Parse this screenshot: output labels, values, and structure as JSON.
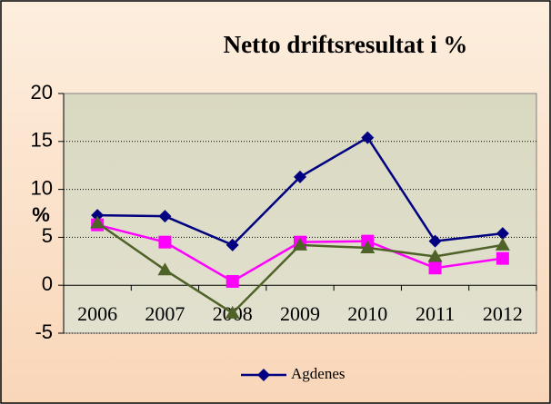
{
  "chart_data": {
    "type": "line",
    "title": "Netto driftsresultat i %",
    "y_label": "%",
    "categories": [
      "2006",
      "2007",
      "2008",
      "2009",
      "2010",
      "2011",
      "2012"
    ],
    "series": [
      {
        "name": "Agdenes",
        "color": "#000080",
        "marker": "diamond",
        "values": [
          7.3,
          7.2,
          4.2,
          11.3,
          15.4,
          4.6,
          5.4
        ]
      },
      {
        "color": "#ff00ff",
        "marker": "square",
        "values": [
          6.3,
          4.5,
          0.4,
          4.5,
          4.6,
          1.8,
          2.8
        ]
      },
      {
        "color": "#4f6228",
        "marker": "triangle",
        "values": [
          6.5,
          1.6,
          -2.9,
          4.2,
          3.9,
          3.0,
          4.2
        ]
      }
    ],
    "ylim": [
      -5,
      20
    ],
    "yticks": [
      -5,
      0,
      5,
      10,
      15,
      20
    ],
    "grid": true,
    "legend": "bottom"
  }
}
